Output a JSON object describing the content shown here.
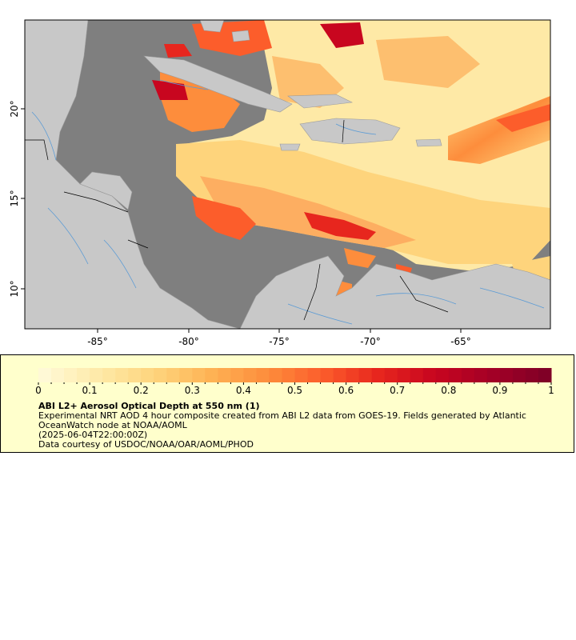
{
  "map": {
    "lon_ticks": [
      "-85°",
      "-80°",
      "-75°",
      "-70°",
      "-65°"
    ],
    "lat_ticks": [
      "10°",
      "15°",
      "20°"
    ],
    "colors": {
      "ocean_nodata": "#7f7f7f",
      "land": "#c8c8c8",
      "rivers": "#5b9bd5",
      "borders": "#000000"
    }
  },
  "legend": {
    "scale_labels": [
      "0",
      "0.1",
      "0.2",
      "0.3",
      "0.4",
      "0.5",
      "0.6",
      "0.7",
      "0.8",
      "0.9",
      "1"
    ],
    "scale_min": 0,
    "scale_max": 1,
    "colormap": [
      "#fff9d6",
      "#fee9a6",
      "#fed47c",
      "#feb254",
      "#fd8d3c",
      "#fc5d2b",
      "#e7261e",
      "#c8061f",
      "#a50026",
      "#800026"
    ],
    "title": "ABI L2+ Aerosol Optical Depth at 550 nm (1)",
    "description": "Experimental NRT AOD 4 hour composite created from ABI L2 data from GOES-19. Fields generated by Atlantic OceanWatch node at NOAA/AOML",
    "time": "(2025-06-04T22:00:00Z)",
    "credit": "Data courtesy of USDOC/NOAA/OAR/AOML/PHOD",
    "background": "#ffffcc"
  }
}
